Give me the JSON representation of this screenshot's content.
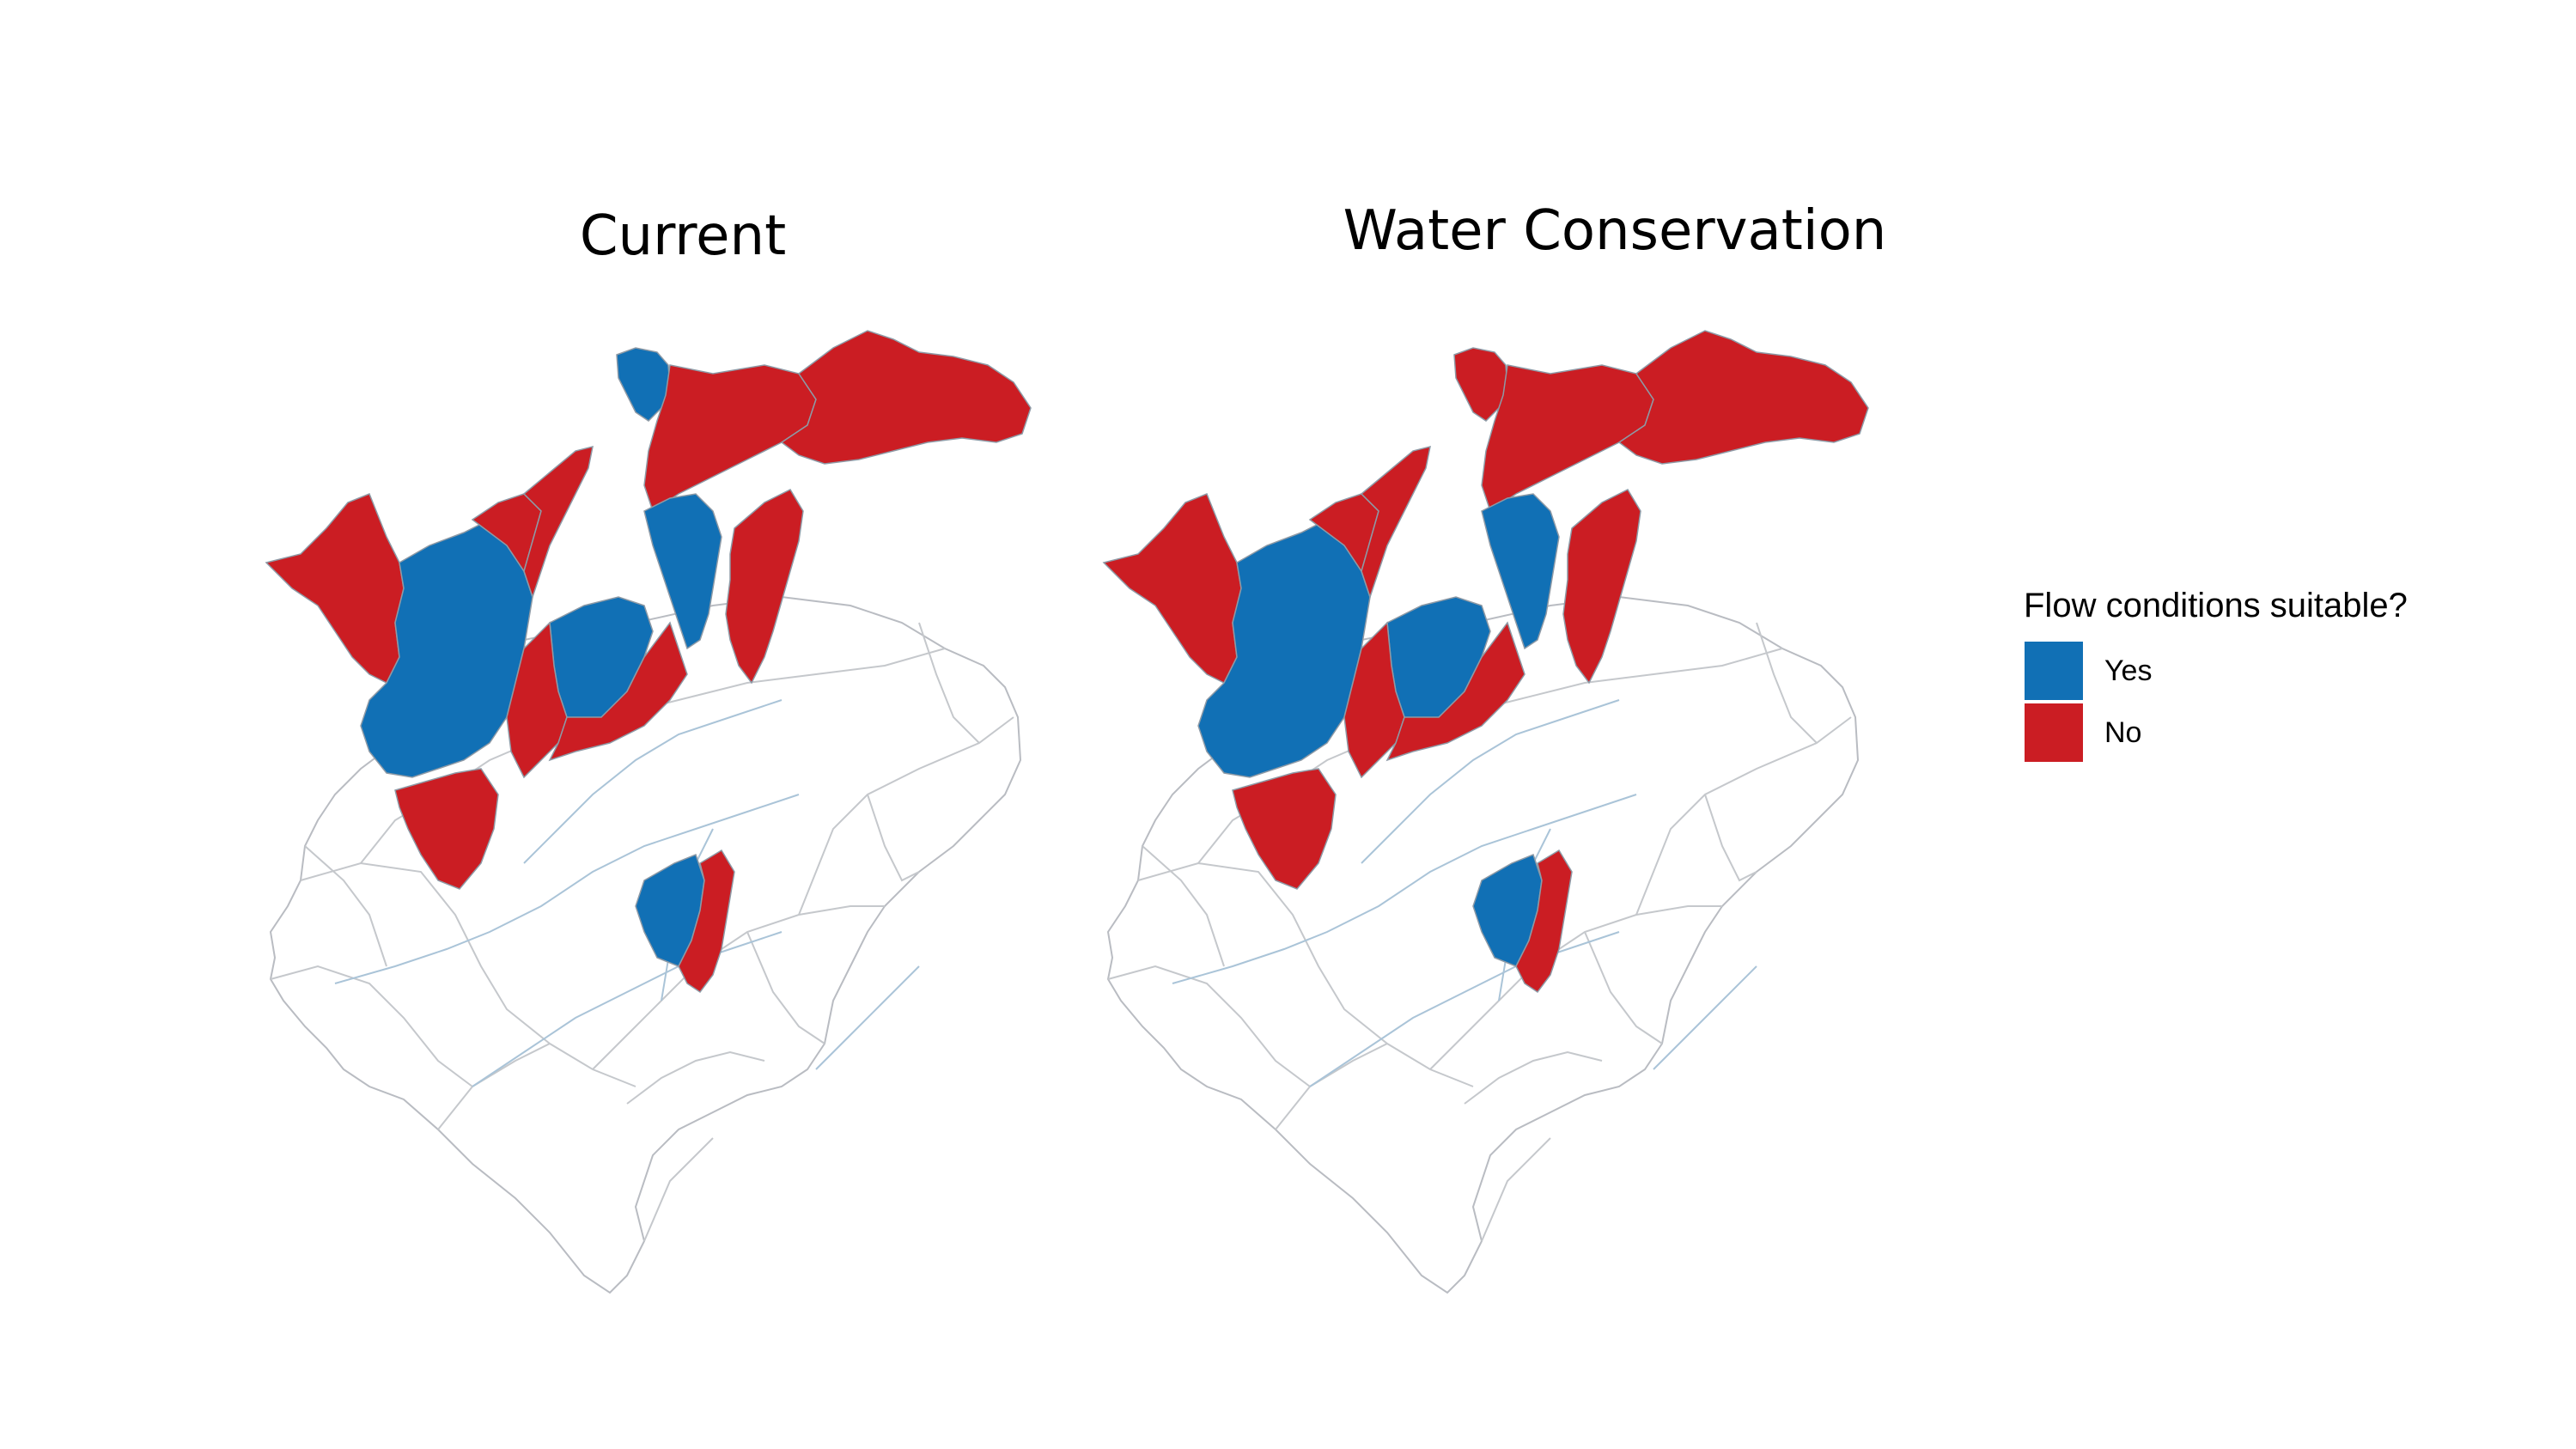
{
  "maps": [
    {
      "title": "Current",
      "regions": [
        {
          "name": "north-tip",
          "status": "Yes"
        },
        {
          "name": "northeast-1",
          "status": "No"
        },
        {
          "name": "northeast-2",
          "status": "No"
        },
        {
          "name": "west-1",
          "status": "No"
        },
        {
          "name": "west-2",
          "status": "Yes"
        },
        {
          "name": "center-1",
          "status": "No"
        },
        {
          "name": "center-2",
          "status": "No"
        },
        {
          "name": "center-3",
          "status": "Yes"
        },
        {
          "name": "center-4",
          "status": "Yes"
        },
        {
          "name": "east-1",
          "status": "No"
        },
        {
          "name": "east-2",
          "status": "No"
        },
        {
          "name": "south-1",
          "status": "No"
        },
        {
          "name": "south-2",
          "status": "No"
        },
        {
          "name": "southeast-1",
          "status": "Yes"
        },
        {
          "name": "southeast-2",
          "status": "No"
        }
      ]
    },
    {
      "title": "Water Conservation",
      "regions": [
        {
          "name": "north-tip",
          "status": "No"
        },
        {
          "name": "northeast-1",
          "status": "No"
        },
        {
          "name": "northeast-2",
          "status": "No"
        },
        {
          "name": "west-1",
          "status": "No"
        },
        {
          "name": "west-2",
          "status": "Yes"
        },
        {
          "name": "center-1",
          "status": "No"
        },
        {
          "name": "center-2",
          "status": "No"
        },
        {
          "name": "center-3",
          "status": "Yes"
        },
        {
          "name": "center-4",
          "status": "Yes"
        },
        {
          "name": "east-1",
          "status": "No"
        },
        {
          "name": "east-2",
          "status": "No"
        },
        {
          "name": "south-1",
          "status": "No"
        },
        {
          "name": "south-2",
          "status": "No"
        },
        {
          "name": "southeast-1",
          "status": "Yes"
        },
        {
          "name": "southeast-2",
          "status": "No"
        }
      ]
    }
  ],
  "legend": {
    "title": "Flow conditions suitable?",
    "items": [
      {
        "label": "Yes",
        "color": "#1170b5"
      },
      {
        "label": "No",
        "color": "#cb1d23"
      }
    ]
  },
  "colors": {
    "yes": "#1170b5",
    "no": "#cb1d23",
    "outline": "#b9bcc2",
    "stream": "#aac4d8"
  }
}
